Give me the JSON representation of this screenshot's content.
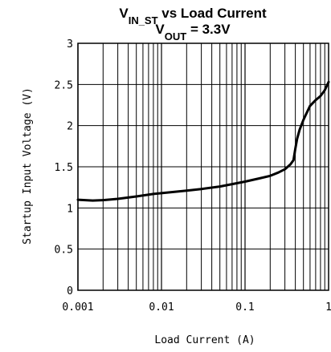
{
  "chart_data": {
    "type": "line",
    "title_parts": [
      {
        "text": "V",
        "sub": false
      },
      {
        "text": "IN_ST",
        "sub": true
      },
      {
        "text": " vs Load Current",
        "sub": false
      }
    ],
    "subtitle_parts": [
      {
        "text": "V",
        "sub": false
      },
      {
        "text": "OUT",
        "sub": true
      },
      {
        "text": " = 3.3V",
        "sub": false
      }
    ],
    "xlabel": "Load Current (A)",
    "ylabel": "Startup Input Voltage (V)",
    "x_scale": "log",
    "xlim": [
      0.001,
      1
    ],
    "ylim": [
      0,
      3
    ],
    "grid": true,
    "x_ticks": [
      {
        "value": 0.001,
        "label": "0.001"
      },
      {
        "value": 0.01,
        "label": "0.01"
      },
      {
        "value": 0.1,
        "label": "0.1"
      },
      {
        "value": 1,
        "label": "1"
      }
    ],
    "y_ticks": [
      {
        "value": 0,
        "label": "0"
      },
      {
        "value": 0.5,
        "label": "0.5"
      },
      {
        "value": 1,
        "label": "1"
      },
      {
        "value": 1.5,
        "label": "1.5"
      },
      {
        "value": 2,
        "label": "2"
      },
      {
        "value": 2.5,
        "label": "2.5"
      },
      {
        "value": 3,
        "label": "3"
      }
    ],
    "series": [
      {
        "color": "#000000",
        "x": [
          0.001,
          0.0015,
          0.002,
          0.003,
          0.005,
          0.008,
          0.01,
          0.02,
          0.03,
          0.05,
          0.1,
          0.15,
          0.2,
          0.25,
          0.3,
          0.35,
          0.38,
          0.4,
          0.42,
          0.45,
          0.5,
          0.55,
          0.6,
          0.7,
          0.8,
          0.9,
          1.0
        ],
        "y": [
          1.1,
          1.09,
          1.095,
          1.11,
          1.14,
          1.17,
          1.18,
          1.21,
          1.23,
          1.26,
          1.32,
          1.36,
          1.39,
          1.43,
          1.47,
          1.53,
          1.58,
          1.72,
          1.84,
          1.95,
          2.07,
          2.16,
          2.24,
          2.31,
          2.36,
          2.43,
          2.53
        ]
      }
    ]
  }
}
